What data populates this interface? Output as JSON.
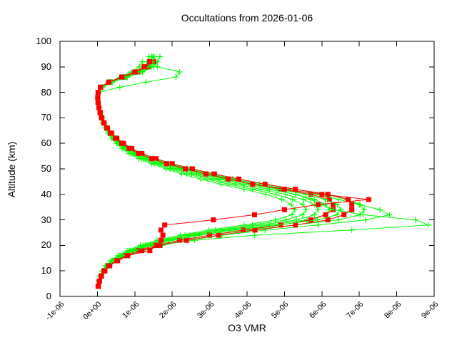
{
  "title": "Occultations from 2026-01-06",
  "colors": {
    "background": "#ffffff",
    "frame": "#000000",
    "text": "#000000",
    "occultation_green": "#00ff00",
    "reference_red": "#ff0000"
  },
  "axes": {
    "x": {
      "label": "O3 VMR",
      "tick_labels": [
        "-1e-06",
        "0e+00",
        "1e-06",
        "2e-06",
        "3e-06",
        "4e-06",
        "5e-06",
        "6e-06",
        "7e-06",
        "8e-06",
        "9e-06"
      ]
    },
    "y": {
      "label": "Altitude (km)",
      "tick_labels": [
        "0",
        "10",
        "20",
        "30",
        "40",
        "50",
        "60",
        "70",
        "80",
        "90",
        "100"
      ]
    }
  },
  "chart_data": {
    "type": "line",
    "title": "Occultations from 2026-01-06",
    "xlabel": "O3 VMR",
    "ylabel": "Altitude (km)",
    "xlim": [
      -1e-06,
      9e-06
    ],
    "ylim": [
      0,
      100
    ],
    "grid": false,
    "legend": "none",
    "vmr_units": "1e-06",
    "altitudes_km": [
      4,
      6,
      8,
      10,
      12,
      14,
      16,
      18,
      20,
      22,
      24,
      26,
      28,
      30,
      32,
      34,
      36,
      38,
      40,
      42,
      44,
      46,
      48,
      50,
      52,
      54,
      56,
      58,
      60,
      62,
      64,
      66,
      68,
      70,
      72,
      74,
      76,
      78,
      80,
      82,
      84,
      86,
      88,
      90,
      92,
      94
    ],
    "series": [
      {
        "id": "occultation-green-1",
        "color": "#00ff00",
        "marker": "plus",
        "vmr": [
          null,
          0.03,
          0.06,
          0.12,
          0.21,
          0.36,
          0.55,
          0.81,
          1.15,
          1.6,
          2.22,
          2.98,
          3.92,
          4.76,
          5.2,
          5.28,
          5.18,
          4.93,
          4.5,
          3.92,
          3.3,
          2.76,
          2.25,
          1.83,
          1.45,
          1.1,
          0.85,
          0.66,
          0.51,
          0.38,
          0.28,
          0.2,
          0.14,
          0.1,
          0.07,
          0.04,
          0.02,
          0.01,
          0.03,
          0.1,
          0.3,
          0.61,
          0.9,
          1.12,
          1.2,
          null
        ]
      },
      {
        "id": "occultation-green-2",
        "color": "#00ff00",
        "marker": "plus",
        "vmr": [
          null,
          null,
          0.07,
          0.13,
          0.24,
          0.4,
          0.62,
          0.9,
          1.28,
          1.8,
          2.47,
          3.32,
          4.37,
          5.32,
          5.8,
          5.9,
          5.8,
          5.51,
          5.03,
          4.37,
          3.7,
          3.09,
          2.52,
          2.04,
          1.62,
          1.23,
          0.95,
          0.74,
          0.57,
          0.43,
          0.31,
          0.23,
          0.16,
          0.11,
          0.08,
          0.05,
          0.03,
          0.02,
          0.03,
          0.11,
          0.33,
          0.67,
          1.0,
          1.24,
          1.33,
          1.38
        ]
      },
      {
        "id": "occultation-green-3",
        "color": "#00ff00",
        "marker": "plus",
        "vmr": [
          null,
          0.03,
          0.07,
          0.14,
          0.25,
          0.42,
          0.65,
          0.95,
          1.35,
          1.9,
          2.6,
          3.5,
          4.6,
          5.6,
          6.1,
          6.2,
          6.1,
          5.8,
          5.3,
          4.6,
          3.9,
          3.25,
          2.65,
          2.15,
          1.7,
          1.3,
          1.0,
          0.78,
          0.6,
          0.45,
          0.33,
          0.24,
          0.17,
          0.12,
          0.08,
          0.05,
          0.03,
          0.02,
          0.03,
          0.12,
          0.35,
          0.7,
          1.05,
          1.3,
          1.4,
          1.45
        ]
      },
      {
        "id": "occultation-green-4",
        "color": "#00ff00",
        "marker": "plus",
        "vmr": [
          null,
          0.04,
          0.08,
          0.16,
          0.29,
          0.48,
          0.75,
          1.09,
          1.55,
          2.18,
          2.99,
          4.02,
          5.29,
          6.44,
          7.02,
          7.13,
          7.02,
          6.67,
          6.1,
          5.29,
          4.48,
          3.74,
          3.05,
          2.47,
          1.96,
          1.5,
          1.15,
          0.9,
          0.69,
          0.52,
          0.38,
          0.28,
          0.2,
          0.14,
          0.09,
          0.06,
          0.03,
          0.02,
          0.03,
          0.14,
          0.4,
          0.8,
          1.21,
          1.5,
          1.61,
          1.67
        ]
      },
      {
        "id": "reference-red-1",
        "color": "#ff0000",
        "marker": "square",
        "vmr": [
          0.02,
          0.05,
          0.1,
          0.18,
          0.3,
          0.5,
          0.75,
          1.1,
          1.55,
          2.2,
          3.0,
          3.9,
          4.9,
          5.7,
          6.1,
          6.3,
          6.3,
          6.2,
          5.7,
          4.9,
          4.15,
          3.5,
          2.9,
          2.35,
          1.85,
          1.45,
          1.1,
          0.85,
          0.65,
          0.48,
          0.35,
          0.25,
          0.17,
          0.11,
          0.07,
          0.04,
          0.02,
          0.01,
          0.02,
          0.08,
          0.3,
          0.65,
          1.0,
          1.25,
          1.4,
          null
        ]
      },
      {
        "id": "occultation-green-5",
        "color": "#00ff00",
        "marker": "plus",
        "vmr": [
          null,
          0.04,
          0.09,
          0.18,
          0.32,
          0.54,
          0.83,
          1.22,
          1.73,
          2.43,
          3.33,
          4.48,
          5.9,
          7.17,
          7.81,
          7.55,
          7.0,
          6.45,
          5.89,
          5.11,
          4.33,
          3.61,
          2.94,
          2.39,
          1.89,
          1.44,
          1.11,
          0.87,
          0.67,
          0.5,
          0.37,
          0.27,
          0.19,
          0.13,
          0.09,
          0.06,
          0.03,
          0.02,
          0.04,
          0.13,
          0.39,
          0.78,
          1.17,
          1.44,
          1.56,
          null
        ]
      },
      {
        "id": "occultation-green-6",
        "color": "#00ff00",
        "marker": "plus",
        "vmr": [
          null,
          0.03,
          0.07,
          0.14,
          0.26,
          0.44,
          0.68,
          1.0,
          1.42,
          2.6,
          4.2,
          6.8,
          8.85,
          8.5,
          7.1,
          6.3,
          6.0,
          5.7,
          5.3,
          4.6,
          3.9,
          3.25,
          2.65,
          2.15,
          1.7,
          1.3,
          1.0,
          0.78,
          0.6,
          0.45,
          0.33,
          0.24,
          0.17,
          0.12,
          0.08,
          0.05,
          0.03,
          0.02,
          0.03,
          0.12,
          0.36,
          0.72,
          1.08,
          1.33,
          1.43,
          1.48
        ]
      },
      {
        "id": "reference-red-2",
        "color": "#ff0000",
        "marker": "square",
        "vmr": [
          0.03,
          0.06,
          0.11,
          0.2,
          0.33,
          0.54,
          0.81,
          1.19,
          1.67,
          2.38,
          3.24,
          4.21,
          5.29,
          6.16,
          6.59,
          6.8,
          6.8,
          6.7,
          6.16,
          5.29,
          4.48,
          3.78,
          3.13,
          2.54,
          2.0,
          1.57,
          1.19,
          0.92,
          0.7,
          0.52,
          0.38,
          0.27,
          0.18,
          0.12,
          0.08,
          0.04,
          0.02,
          0.01,
          0.02,
          0.09,
          0.32,
          0.7,
          1.08,
          1.35,
          1.51,
          null
        ]
      },
      {
        "id": "occultation-green-7",
        "color": "#00ff00",
        "marker": "plus",
        "vmr": [
          null,
          null,
          0.06,
          0.13,
          0.23,
          0.38,
          0.59,
          0.86,
          1.22,
          1.71,
          2.34,
          3.15,
          4.14,
          5.04,
          5.49,
          5.58,
          5.49,
          5.22,
          4.77,
          4.14,
          3.51,
          2.93,
          2.39,
          1.94,
          1.53,
          1.17,
          0.9,
          0.7,
          0.54,
          0.41,
          0.3,
          0.22,
          0.15,
          0.11,
          0.07,
          0.05,
          0.03,
          0.02,
          0.04,
          0.6,
          1.3,
          2.1,
          2.2,
          1.6,
          1.45,
          null
        ]
      },
      {
        "id": "occultation-green-8",
        "color": "#00ff00",
        "marker": "plus",
        "vmr": [
          null,
          0.03,
          0.07,
          0.15,
          0.26,
          0.44,
          0.68,
          1.0,
          1.42,
          2.0,
          2.73,
          3.68,
          4.83,
          5.88,
          6.41,
          6.51,
          6.41,
          6.09,
          5.57,
          4.83,
          4.1,
          3.41,
          2.78,
          2.26,
          1.79,
          1.37,
          1.05,
          0.82,
          0.63,
          0.47,
          0.35,
          0.25,
          0.18,
          0.13,
          0.08,
          0.05,
          0.03,
          0.02,
          0.03,
          0.13,
          0.37,
          0.74,
          1.1,
          1.37,
          1.47,
          1.52
        ]
      },
      {
        "id": "reference-red-3",
        "color": "#ff0000",
        "marker": "square",
        "vmr": [
          0.02,
          0.05,
          0.1,
          0.18,
          0.3,
          0.52,
          0.8,
          1.4,
          1.6,
          1.7,
          1.75,
          1.7,
          1.8,
          3.1,
          4.2,
          5.0,
          5.9,
          7.25,
          6.0,
          5.0,
          4.15,
          3.5,
          2.9,
          2.35,
          1.85,
          1.45,
          1.1,
          0.85,
          0.65,
          0.48,
          0.35,
          0.25,
          0.17,
          0.11,
          0.07,
          0.04,
          0.02,
          0.01,
          0.02,
          0.08,
          0.3,
          0.65,
          1.0,
          1.25,
          1.4,
          null
        ]
      }
    ]
  }
}
